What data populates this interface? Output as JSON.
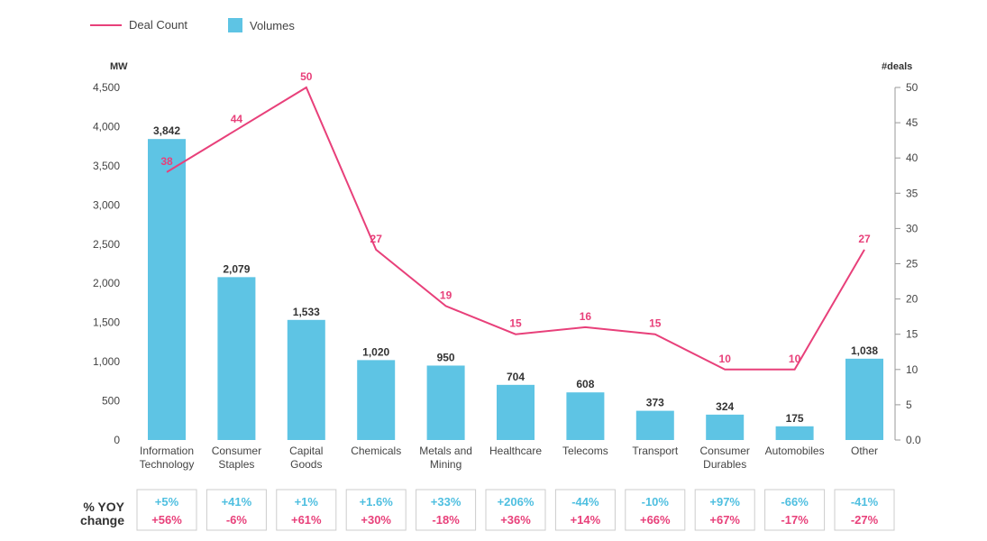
{
  "legend": {
    "line_label": "Deal Count",
    "bar_label": "Volumes"
  },
  "yoy_label_line1": "% YOY",
  "yoy_label_line2": "change",
  "colors": {
    "bar": "#5ec4e4",
    "line": "#e8407a",
    "yoy_volume": "#4fbfe0",
    "yoy_deals": "#e8407a"
  },
  "chart_data": {
    "type": "bar",
    "categories": [
      [
        "Information",
        "Technology"
      ],
      [
        "Consumer",
        "Staples"
      ],
      [
        "Capital",
        "Goods"
      ],
      [
        "Chemicals"
      ],
      [
        "Metals and",
        "Mining"
      ],
      [
        "Healthcare"
      ],
      [
        "Telecoms"
      ],
      [
        "Transport"
      ],
      [
        "Consumer",
        "Durables"
      ],
      [
        "Automobiles"
      ],
      [
        "Other"
      ]
    ],
    "series": [
      {
        "name": "Volumes",
        "type": "bar",
        "axis": "left",
        "values": [
          3842,
          2079,
          1533,
          1020,
          950,
          704,
          608,
          373,
          324,
          175,
          1038
        ],
        "labels": [
          "3,842",
          "2,079",
          "1,533",
          "1,020",
          "950",
          "704",
          "608",
          "373",
          "324",
          "175",
          "1,038"
        ]
      },
      {
        "name": "Deal Count",
        "type": "line",
        "axis": "right",
        "values": [
          38,
          44,
          50,
          27,
          19,
          15,
          16,
          15,
          10,
          10,
          27
        ],
        "labels": [
          "38",
          "44",
          "50",
          "27",
          "19",
          "15",
          "16",
          "15",
          "10",
          "10",
          "27"
        ]
      }
    ],
    "yoy_volume": [
      "+5%",
      "+41%",
      "+1%",
      "+1.6%",
      "+33%",
      "+206%",
      "-44%",
      "-10%",
      "+97%",
      "-66%",
      "-41%"
    ],
    "yoy_deals": [
      "+56%",
      "-6%",
      "+61%",
      "+30%",
      "-18%",
      "+36%",
      "+14%",
      "+66%",
      "+67%",
      "-17%",
      "-27%"
    ],
    "ylabel_left": "MW",
    "ylabel_right": "#deals",
    "ylim_left": [
      0,
      4500
    ],
    "ylim_right": [
      0,
      50
    ],
    "yticks_left": [
      "0",
      "500",
      "1,000",
      "1,500",
      "2,000",
      "2,500",
      "3,000",
      "3,500",
      "4,000",
      "4,500"
    ],
    "yticks_right": [
      "0.0",
      "5",
      "10",
      "15",
      "20",
      "25",
      "30",
      "35",
      "40",
      "45",
      "50"
    ],
    "grid": false,
    "legend_position": "top-left"
  }
}
